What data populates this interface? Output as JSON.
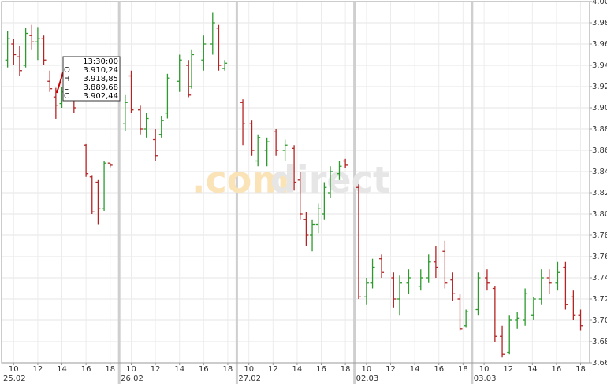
{
  "chart_data": {
    "type": "ohlc",
    "watermark": [
      ".com",
      "direct"
    ],
    "up_color": "#2e9a2e",
    "down_color": "#b32424",
    "grid": true,
    "xlim": [
      0,
      48.75
    ],
    "ylim": [
      3660,
      4000
    ],
    "yticks": [
      {
        "value": 3660,
        "label": "3.660"
      },
      {
        "value": 3680,
        "label": "3.680"
      },
      {
        "value": 3700,
        "label": "3.700"
      },
      {
        "value": 3720,
        "label": "3.720"
      },
      {
        "value": 3740,
        "label": "3.740"
      },
      {
        "value": 3760,
        "label": "3.760"
      },
      {
        "value": 3780,
        "label": "3.780"
      },
      {
        "value": 3800,
        "label": "3.800"
      },
      {
        "value": 3820,
        "label": "3.820"
      },
      {
        "value": 3840,
        "label": "3.840"
      },
      {
        "value": 3860,
        "label": "3.860"
      },
      {
        "value": 3880,
        "label": "3.880"
      },
      {
        "value": 3900,
        "label": "3.900"
      },
      {
        "value": 3920,
        "label": "3.920"
      },
      {
        "value": 3940,
        "label": "3.940"
      },
      {
        "value": 3960,
        "label": "3.960"
      },
      {
        "value": 3980,
        "label": "3.980"
      },
      {
        "value": 4000,
        "label": "4.000"
      }
    ],
    "xticks": [
      {
        "value": 1,
        "label": "10"
      },
      {
        "value": 3,
        "label": "12"
      },
      {
        "value": 5,
        "label": "14"
      },
      {
        "value": 7,
        "label": "16"
      },
      {
        "value": 9,
        "label": "18"
      },
      {
        "value": 10.75,
        "label": "10"
      },
      {
        "value": 12.75,
        "label": "12"
      },
      {
        "value": 14.75,
        "label": "14"
      },
      {
        "value": 16.75,
        "label": "16"
      },
      {
        "value": 18.75,
        "label": "18"
      },
      {
        "value": 20.5,
        "label": "10"
      },
      {
        "value": 22.5,
        "label": "12"
      },
      {
        "value": 24.5,
        "label": "14"
      },
      {
        "value": 26.5,
        "label": "16"
      },
      {
        "value": 28.5,
        "label": "18"
      },
      {
        "value": 30.25,
        "label": "10"
      },
      {
        "value": 32.25,
        "label": "12"
      },
      {
        "value": 34.25,
        "label": "14"
      },
      {
        "value": 36.25,
        "label": "16"
      },
      {
        "value": 38.25,
        "label": "18"
      },
      {
        "value": 40,
        "label": "10"
      },
      {
        "value": 42,
        "label": "12"
      },
      {
        "value": 44,
        "label": "14"
      },
      {
        "value": 46,
        "label": "16"
      },
      {
        "value": 48,
        "label": "18"
      }
    ],
    "day_ticks": [
      {
        "value": 0,
        "label": "25.02"
      },
      {
        "value": 9.75,
        "label": "26.02"
      },
      {
        "value": 19.5,
        "label": "27.02"
      },
      {
        "value": 29.25,
        "label": "02.03"
      },
      {
        "value": 39,
        "label": "03.03"
      }
    ],
    "x": [
      0.5,
      1.0,
      1.5,
      2.0,
      2.5,
      3.0,
      3.5,
      4.0,
      4.5,
      5.0,
      6.0,
      7.0,
      7.5,
      8.0,
      8.5,
      9.0,
      10.25,
      10.75,
      11.5,
      12.0,
      12.75,
      13.25,
      13.75,
      14.75,
      15.5,
      15.75,
      16.75,
      17.5,
      18.0,
      18.5,
      20.0,
      20.75,
      21.25,
      22.0,
      22.75,
      23.5,
      24.25,
      24.75,
      25.25,
      25.75,
      26.25,
      26.75,
      27.25,
      28.0,
      28.5,
      29.6,
      30.25,
      30.75,
      31.5,
      32.5,
      33.0,
      33.75,
      34.75,
      35.4,
      36.0,
      36.75,
      37.4,
      38.0,
      38.5,
      39.5,
      40.25,
      40.9,
      41.5,
      42.1,
      42.75,
      43.4,
      44.1,
      44.75,
      45.4,
      46.1,
      46.75,
      47.4,
      48.0
    ],
    "open": [
      3945,
      3960,
      3948,
      3940,
      3968,
      3962,
      3965,
      3925,
      3910.24,
      3904,
      3910,
      3865,
      3835,
      3830,
      3805,
      3848,
      3885,
      3930,
      3898,
      3880,
      3870,
      3875,
      3895,
      3925,
      3940,
      3920,
      3945,
      3960,
      3975,
      3937,
      3905,
      3885,
      3850,
      3860,
      3878,
      3860,
      3862,
      3832,
      3795,
      3780,
      3790,
      3800,
      3820,
      3838,
      3850,
      3825,
      3722,
      3735,
      3758,
      3740,
      3720,
      3735,
      3732,
      3740,
      3755,
      3765,
      3738,
      3720,
      3695,
      3710,
      3740,
      3730,
      3685,
      3670,
      3700,
      3700,
      3705,
      3720,
      3740,
      3735,
      3750,
      3722,
      3705
    ],
    "high": [
      3972,
      3965,
      3958,
      3975,
      3978,
      3976,
      3968,
      3935,
      3918.85,
      3920,
      3912,
      3866,
      3836,
      3832,
      3850,
      3848,
      3912,
      3935,
      3902,
      3895,
      3880,
      3892,
      3932,
      3950,
      3945,
      3955,
      3968,
      3990,
      3978,
      3945,
      3908,
      3888,
      3875,
      3872,
      3880,
      3870,
      3865,
      3840,
      3802,
      3795,
      3810,
      3830,
      3845,
      3850,
      3852,
      3828,
      3740,
      3758,
      3762,
      3745,
      3742,
      3748,
      3748,
      3762,
      3770,
      3775,
      3745,
      3725,
      3710,
      3745,
      3748,
      3732,
      3695,
      3705,
      3708,
      3730,
      3722,
      3748,
      3748,
      3755,
      3755,
      3728,
      3710
    ],
    "low": [
      3938,
      3940,
      3930,
      3938,
      3955,
      3945,
      3940,
      3915,
      3889.68,
      3900,
      3895,
      3835,
      3800,
      3790,
      3803,
      3844,
      3878,
      3895,
      3875,
      3872,
      3850,
      3872,
      3890,
      3915,
      3910,
      3918,
      3935,
      3950,
      3935,
      3935,
      3865,
      3855,
      3845,
      3845,
      3855,
      3850,
      3822,
      3795,
      3770,
      3765,
      3782,
      3795,
      3815,
      3832,
      3843,
      3720,
      3715,
      3730,
      3740,
      3712,
      3705,
      3725,
      3728,
      3735,
      3740,
      3730,
      3718,
      3690,
      3693,
      3705,
      3728,
      3680,
      3665,
      3668,
      3692,
      3695,
      3700,
      3715,
      3725,
      3728,
      3710,
      3700,
      3690
    ],
    "close": [
      3965,
      3950,
      3935,
      3970,
      3962,
      3965,
      3945,
      3918,
      3902.44,
      3915,
      3900,
      3838,
      3802,
      3805,
      3848,
      3846,
      3905,
      3898,
      3880,
      3890,
      3855,
      3888,
      3928,
      3945,
      3912,
      3950,
      3960,
      3980,
      3940,
      3942,
      3885,
      3860,
      3872,
      3868,
      3860,
      3865,
      3830,
      3800,
      3780,
      3790,
      3805,
      3825,
      3840,
      3845,
      3846,
      3722,
      3735,
      3750,
      3745,
      3720,
      3735,
      3740,
      3740,
      3755,
      3750,
      3735,
      3725,
      3692,
      3708,
      3740,
      3735,
      3685,
      3668,
      3700,
      3702,
      3725,
      3720,
      3740,
      3735,
      3745,
      3715,
      3705,
      3695
    ],
    "tooltip": {
      "time": "13:30:00",
      "rows": [
        {
          "key": "O",
          "label": "3.910,24"
        },
        {
          "key": "H",
          "label": "3.918,85"
        },
        {
          "key": "L",
          "label": "3.889,68"
        },
        {
          "key": "C",
          "label": "3.902,44"
        }
      ]
    }
  }
}
